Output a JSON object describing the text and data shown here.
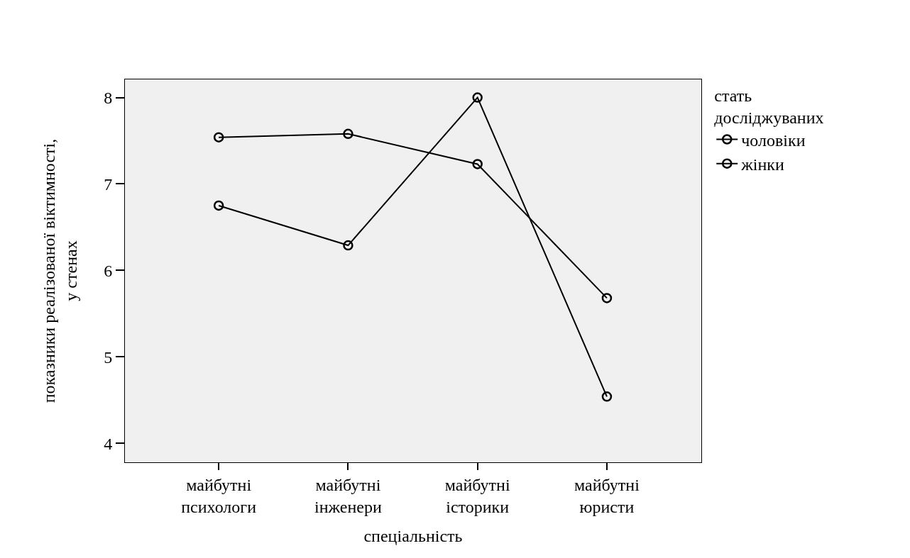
{
  "chart_data": {
    "type": "line",
    "xlabel": "спеціальність",
    "ylabel": "показники реалізованої віктимності,\nу стенах",
    "legend_title": "стать\nдосліджуваних",
    "categories": [
      "майбутні\nпсихологи",
      "майбутні\nінженери",
      "майбутні\nісторики",
      "майбутні\nюристи"
    ],
    "series": [
      {
        "name": "чоловіки",
        "color": "#000000",
        "values": [
          7.54,
          7.58,
          7.23,
          5.68
        ]
      },
      {
        "name": "жінки",
        "color": "#000000",
        "values": [
          6.75,
          6.29,
          8.0,
          4.54
        ]
      }
    ],
    "ylim": [
      3.78,
      8.21
    ],
    "yticks": [
      4,
      5,
      6,
      7,
      8
    ],
    "grid": false,
    "legend": "top right",
    "marker": "circle",
    "line_style": "solid"
  }
}
